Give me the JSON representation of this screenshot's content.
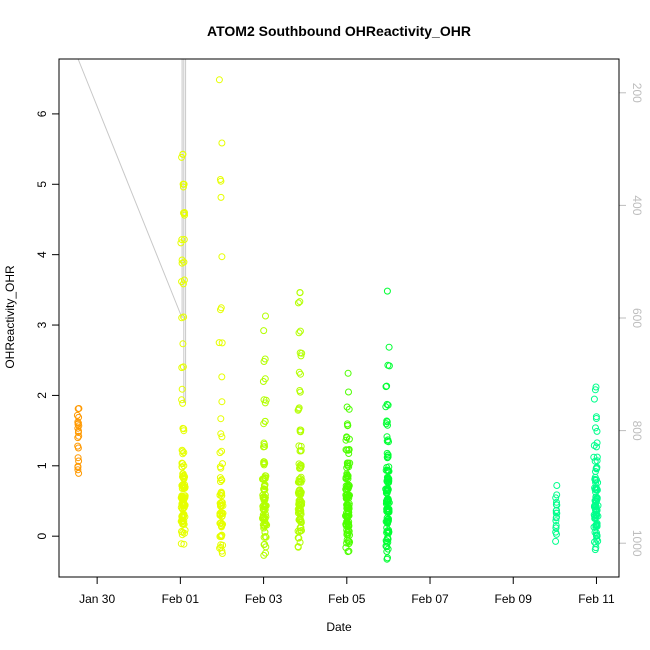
{
  "chart_data": {
    "type": "scatter",
    "title": "ATOM2 Southbound OHReactivity_OHR",
    "xlabel": "Date",
    "ylabel": "OHReactivity_OHR",
    "x_ticks": [
      {
        "date": "2017-01-30",
        "label": "Jan 30"
      },
      {
        "date": "2017-02-01",
        "label": "Feb 01"
      },
      {
        "date": "2017-02-03",
        "label": "Feb 03"
      },
      {
        "date": "2017-02-05",
        "label": "Feb 05"
      },
      {
        "date": "2017-02-07",
        "label": "Feb 07"
      },
      {
        "date": "2017-02-09",
        "label": "Feb 09"
      },
      {
        "date": "2017-02-11",
        "label": "Feb 11"
      }
    ],
    "xlim": [
      "2017-01-29T02:00",
      "2017-02-11T13:00"
    ],
    "y_ticks": [
      0,
      1,
      2,
      3,
      4,
      5,
      6
    ],
    "ylim": [
      -0.58,
      6.78
    ],
    "right_axis": {
      "ticks": [
        200,
        400,
        600,
        800,
        1000
      ],
      "range": [
        1060,
        140
      ],
      "color": "#bdbdbd",
      "orientation": "reversed"
    },
    "point_marker": "open-circle",
    "colors": {
      "orange": "#ff9900",
      "yellow": "#e6ff00",
      "yellow_green": "#b3ff00",
      "green": "#4dff00",
      "bright_green": "#00ff33",
      "aqua_green": "#00ff8c",
      "line": "#c8c8c8"
    },
    "series": [
      {
        "date": "2017-01-30",
        "color": "#ff9900",
        "center_time": "2017-01-29T13:00",
        "time_spread_hours": 0.8,
        "points": [
          {
            "y": 1.8,
            "n": 2
          },
          {
            "y": 1.7,
            "n": 2
          },
          {
            "y": 1.6,
            "n": 4
          },
          {
            "y": 1.5,
            "n": 3
          },
          {
            "y": 1.4,
            "n": 2
          },
          {
            "y": 1.25,
            "n": 2
          },
          {
            "y": 1.1,
            "n": 2
          },
          {
            "y": 1.0,
            "n": 2
          },
          {
            "y": 0.93,
            "n": 2
          }
        ]
      },
      {
        "date": "2017-02-01",
        "color": "#e6ff00",
        "center_time": "2017-02-01T01:30",
        "time_spread_hours": 2.0,
        "points": [
          {
            "y": 5.4,
            "n": 3
          },
          {
            "y": 5.0,
            "n": 4
          },
          {
            "y": 4.6,
            "n": 4
          },
          {
            "y": 4.2,
            "n": 3
          },
          {
            "y": 3.9,
            "n": 3
          },
          {
            "y": 3.6,
            "n": 3
          },
          {
            "y": 3.1,
            "n": 2
          },
          {
            "y": 2.7,
            "n": 1
          },
          {
            "y": 2.4,
            "n": 2
          },
          {
            "y": 2.1,
            "n": 1
          },
          {
            "y": 1.9,
            "n": 2
          },
          {
            "y": 1.5,
            "n": 3
          },
          {
            "y": 1.2,
            "n": 4
          },
          {
            "y": 1.0,
            "n": 6
          },
          {
            "y": 0.85,
            "n": 10
          },
          {
            "y": 0.7,
            "n": 14
          },
          {
            "y": 0.55,
            "n": 16
          },
          {
            "y": 0.42,
            "n": 18
          },
          {
            "y": 0.3,
            "n": 14
          },
          {
            "y": 0.18,
            "n": 10
          },
          {
            "y": 0.05,
            "n": 5
          },
          {
            "y": -0.08,
            "n": 2
          }
        ]
      },
      {
        "date": "2017-02-02",
        "color": "#e6ff00",
        "center_time": "2017-02-01T23:30",
        "time_spread_hours": 1.6,
        "points": [
          {
            "y": 6.5,
            "n": 1
          },
          {
            "y": 5.55,
            "n": 1
          },
          {
            "y": 5.05,
            "n": 2
          },
          {
            "y": 4.8,
            "n": 1
          },
          {
            "y": 3.95,
            "n": 1
          },
          {
            "y": 3.25,
            "n": 2
          },
          {
            "y": 2.75,
            "n": 2
          },
          {
            "y": 2.3,
            "n": 1
          },
          {
            "y": 1.95,
            "n": 1
          },
          {
            "y": 1.7,
            "n": 1
          },
          {
            "y": 1.45,
            "n": 2
          },
          {
            "y": 1.2,
            "n": 2
          },
          {
            "y": 1.0,
            "n": 3
          },
          {
            "y": 0.8,
            "n": 4
          },
          {
            "y": 0.6,
            "n": 8
          },
          {
            "y": 0.45,
            "n": 10
          },
          {
            "y": 0.3,
            "n": 10
          },
          {
            "y": 0.15,
            "n": 8
          },
          {
            "y": 0.0,
            "n": 5
          },
          {
            "y": -0.15,
            "n": 4
          },
          {
            "y": -0.25,
            "n": 2
          }
        ]
      },
      {
        "date": "2017-02-03",
        "color": "#b3ff00",
        "center_time": "2017-02-03T00:30",
        "time_spread_hours": 1.8,
        "points": [
          {
            "y": 3.15,
            "n": 1
          },
          {
            "y": 2.95,
            "n": 1
          },
          {
            "y": 2.5,
            "n": 2
          },
          {
            "y": 2.2,
            "n": 2
          },
          {
            "y": 1.9,
            "n": 3
          },
          {
            "y": 1.6,
            "n": 3
          },
          {
            "y": 1.3,
            "n": 4
          },
          {
            "y": 1.05,
            "n": 6
          },
          {
            "y": 0.85,
            "n": 8
          },
          {
            "y": 0.7,
            "n": 10
          },
          {
            "y": 0.55,
            "n": 12
          },
          {
            "y": 0.4,
            "n": 14
          },
          {
            "y": 0.28,
            "n": 12
          },
          {
            "y": 0.15,
            "n": 8
          },
          {
            "y": 0.02,
            "n": 5
          },
          {
            "y": -0.12,
            "n": 3
          },
          {
            "y": -0.25,
            "n": 2
          }
        ]
      },
      {
        "date": "2017-02-04",
        "color": "#b3ff00",
        "center_time": "2017-02-03T21:00",
        "time_spread_hours": 1.8,
        "points": [
          {
            "y": 3.45,
            "n": 2
          },
          {
            "y": 3.3,
            "n": 2
          },
          {
            "y": 2.9,
            "n": 2
          },
          {
            "y": 2.6,
            "n": 3
          },
          {
            "y": 2.3,
            "n": 2
          },
          {
            "y": 2.05,
            "n": 2
          },
          {
            "y": 1.8,
            "n": 3
          },
          {
            "y": 1.5,
            "n": 4
          },
          {
            "y": 1.25,
            "n": 5
          },
          {
            "y": 1.0,
            "n": 7
          },
          {
            "y": 0.8,
            "n": 10
          },
          {
            "y": 0.62,
            "n": 12
          },
          {
            "y": 0.48,
            "n": 14
          },
          {
            "y": 0.35,
            "n": 12
          },
          {
            "y": 0.22,
            "n": 9
          },
          {
            "y": 0.1,
            "n": 6
          },
          {
            "y": -0.05,
            "n": 3
          },
          {
            "y": -0.12,
            "n": 2
          }
        ]
      },
      {
        "date": "2017-02-05",
        "color": "#4dff00",
        "center_time": "2017-02-05T00:30",
        "time_spread_hours": 2.0,
        "points": [
          {
            "y": 2.35,
            "n": 1
          },
          {
            "y": 2.05,
            "n": 1
          },
          {
            "y": 1.8,
            "n": 2
          },
          {
            "y": 1.6,
            "n": 3
          },
          {
            "y": 1.4,
            "n": 4
          },
          {
            "y": 1.2,
            "n": 5
          },
          {
            "y": 1.0,
            "n": 7
          },
          {
            "y": 0.85,
            "n": 10
          },
          {
            "y": 0.7,
            "n": 12
          },
          {
            "y": 0.56,
            "n": 14
          },
          {
            "y": 0.42,
            "n": 16
          },
          {
            "y": 0.3,
            "n": 16
          },
          {
            "y": 0.18,
            "n": 12
          },
          {
            "y": 0.05,
            "n": 9
          },
          {
            "y": -0.08,
            "n": 6
          },
          {
            "y": -0.2,
            "n": 3
          }
        ]
      },
      {
        "date": "2017-02-06",
        "color": "#00ff33",
        "center_time": "2017-02-05T23:30",
        "time_spread_hours": 1.6,
        "points": [
          {
            "y": 3.52,
            "n": 1
          },
          {
            "y": 2.72,
            "n": 1
          },
          {
            "y": 2.42,
            "n": 2
          },
          {
            "y": 2.15,
            "n": 2
          },
          {
            "y": 1.85,
            "n": 3
          },
          {
            "y": 1.6,
            "n": 4
          },
          {
            "y": 1.38,
            "n": 4
          },
          {
            "y": 1.15,
            "n": 6
          },
          {
            "y": 0.95,
            "n": 8
          },
          {
            "y": 0.8,
            "n": 10
          },
          {
            "y": 0.65,
            "n": 12
          },
          {
            "y": 0.5,
            "n": 14
          },
          {
            "y": 0.36,
            "n": 14
          },
          {
            "y": 0.22,
            "n": 12
          },
          {
            "y": 0.08,
            "n": 8
          },
          {
            "y": -0.05,
            "n": 6
          },
          {
            "y": -0.18,
            "n": 4
          },
          {
            "y": -0.3,
            "n": 2
          }
        ]
      },
      {
        "date": "2017-02-10",
        "color": "#00ff8c",
        "center_time": "2017-02-10T00:45",
        "time_spread_hours": 0.8,
        "points": [
          {
            "y": 0.75,
            "n": 1
          },
          {
            "y": 0.55,
            "n": 2
          },
          {
            "y": 0.45,
            "n": 3
          },
          {
            "y": 0.35,
            "n": 4
          },
          {
            "y": 0.25,
            "n": 3
          },
          {
            "y": 0.15,
            "n": 3
          },
          {
            "y": 0.05,
            "n": 2
          },
          {
            "y": -0.1,
            "n": 1
          }
        ]
      },
      {
        "date": "2017-02-11",
        "color": "#00ff8c",
        "center_time": "2017-02-10T23:45",
        "time_spread_hours": 1.8,
        "points": [
          {
            "y": 2.15,
            "n": 1
          },
          {
            "y": 2.05,
            "n": 1
          },
          {
            "y": 1.95,
            "n": 1
          },
          {
            "y": 1.7,
            "n": 2
          },
          {
            "y": 1.5,
            "n": 2
          },
          {
            "y": 1.3,
            "n": 3
          },
          {
            "y": 1.1,
            "n": 4
          },
          {
            "y": 0.95,
            "n": 5
          },
          {
            "y": 0.8,
            "n": 7
          },
          {
            "y": 0.65,
            "n": 9
          },
          {
            "y": 0.52,
            "n": 11
          },
          {
            "y": 0.4,
            "n": 13
          },
          {
            "y": 0.28,
            "n": 12
          },
          {
            "y": 0.16,
            "n": 9
          },
          {
            "y": 0.04,
            "n": 6
          },
          {
            "y": -0.08,
            "n": 4
          },
          {
            "y": -0.2,
            "n": 2
          }
        ]
      }
    ],
    "secondary_line": {
      "color": "#c8c8c8",
      "y_axis": "right",
      "points": [
        [
          "2017-01-29T13:00",
          140
        ],
        [
          "2017-01-29T13:00",
          140
        ],
        [
          "2017-01-29T13:00",
          140
        ],
        [
          "2017-01-29T13:00",
          140
        ],
        [
          "2017-02-01T01:00",
          600
        ],
        [
          "2017-02-01T01:00",
          140
        ],
        [
          "2017-02-01T02:00",
          140
        ],
        [
          "2017-02-01T02:00",
          750
        ],
        [
          "2017-02-01T03:00",
          750
        ],
        [
          "2017-02-01T03:00",
          140
        ],
        [
          "2017-02-01T05:00",
          140
        ],
        [
          "2017-02-01T22:00",
          140
        ],
        [
          "2017-02-01T23:00",
          140
        ],
        [
          "2017-02-02T00:00",
          140
        ],
        [
          "2017-02-02T01:00",
          140
        ],
        [
          "2017-02-02T00:00",
          140
        ],
        [
          "2017-02-03T00:00",
          140
        ],
        [
          "2017-02-03T01:00",
          140
        ],
        [
          "2017-02-03T02:00",
          140
        ],
        [
          "2017-02-03T21:00",
          140
        ],
        [
          "2017-02-03T22:00",
          140
        ],
        [
          "2017-02-04T23:00",
          140
        ],
        [
          "2017-02-05T00:00",
          140
        ],
        [
          "2017-02-05T01:00",
          140
        ],
        [
          "2017-02-05T02:00",
          140
        ],
        [
          "2017-02-05T22:00",
          140
        ],
        [
          "2017-02-05T23:00",
          140
        ],
        [
          "2017-02-06T00:00",
          140
        ],
        [
          "2017-02-06T01:00",
          140
        ],
        [
          "2017-02-10T00:45",
          140
        ],
        [
          "2017-02-10T23:30",
          140
        ]
      ]
    }
  }
}
